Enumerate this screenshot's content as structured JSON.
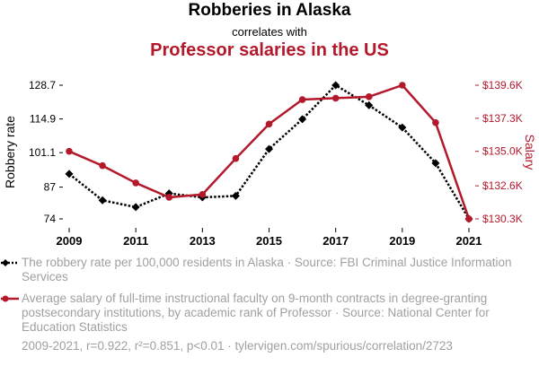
{
  "header": {
    "title": "Robberies in Alaska",
    "connector": "correlates with",
    "subtitle": "Professor salaries in the US"
  },
  "chart_data": {
    "type": "line",
    "x": [
      2009,
      2010,
      2011,
      2012,
      2013,
      2014,
      2015,
      2016,
      2017,
      2018,
      2019,
      2020,
      2021
    ],
    "xticks": [
      "2009",
      "2011",
      "2013",
      "2015",
      "2017",
      "2019",
      "2021"
    ],
    "series": [
      {
        "name": "The robbery rate per 100,000 residents in Alaska",
        "axis": "left",
        "color": "#000000",
        "style": "dotted",
        "marker": "diamond",
        "values": [
          92.4,
          81.6,
          78.8,
          84.4,
          82.8,
          83.4,
          102.6,
          114.8,
          128.7,
          120.5,
          111.4,
          96.8,
          74.0
        ]
      },
      {
        "name": "Average salary of full-time instructional faculty on 9-month contracts",
        "axis": "right",
        "color": "#b3192b",
        "style": "solid",
        "marker": "circle",
        "values": [
          135.0,
          134.0,
          132.8,
          131.8,
          132.0,
          134.5,
          136.9,
          138.6,
          138.7,
          138.8,
          139.6,
          137.0,
          130.3
        ]
      }
    ],
    "yleft": {
      "label": "Robbery rate",
      "lim": [
        74,
        128.7
      ],
      "ticks": [
        74,
        87,
        101.1,
        114.9,
        128.7
      ],
      "tick_labels": [
        "74",
        "87",
        "101.1",
        "114.9",
        "128.7"
      ]
    },
    "yright": {
      "label": "Salary",
      "lim": [
        130.3,
        139.6
      ],
      "ticks": [
        130.3,
        132.6,
        135.0,
        137.3,
        139.6
      ],
      "tick_labels": [
        "$130.3K",
        "$132.6K",
        "$135.0K",
        "$137.3K",
        "$139.6K"
      ]
    },
    "grid": false
  },
  "legend": {
    "robbery": "The robbery rate per 100,000 residents in Alaska · Source: FBI Criminal Justice Information Services",
    "salary": "Average salary of full-time instructional faculty on 9-month contracts in degree-granting postsecondary institutions, by academic rank of Professor · Source: National Center for Education Statistics"
  },
  "footer": "2009-2021, r=0.922, r²=0.851, p<0.01 · tylervigen.com/spurious/correlation/2723"
}
